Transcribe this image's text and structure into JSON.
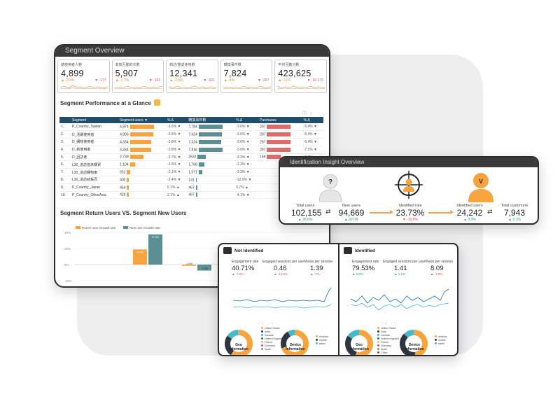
{
  "segment_overview": {
    "title": "Segment Overview",
    "kpis": [
      {
        "label": "總使用者人數",
        "value": "4,899",
        "delta": "▼ -177",
        "pct": "▲ -3.5%"
      },
      {
        "label": "有效互動的次數",
        "value": "5,907",
        "delta": "▼ -101",
        "pct": "▲ -1.7%"
      },
      {
        "label": "新訪/重返使用數",
        "value": "12,341",
        "delta": "▼ -321",
        "pct": "▲ -2.5%"
      },
      {
        "label": "轉換事件數",
        "value": "7,824",
        "delta": "▼ -307",
        "pct": "▲ -4%"
      },
      {
        "label": "平均互動分數",
        "value": "423,625",
        "delta": "▼ -52,175",
        "pct": "▲ -11%"
      }
    ],
    "performance": {
      "title": "Segment Performance at a Glance",
      "columns": [
        "Segment",
        "Segment users ▼",
        "% Δ",
        "轉換事件數",
        "% Δ",
        "Purchases",
        "% Δ"
      ],
      "rows": [
        {
          "no": "1.",
          "segment": "P_Country_Taiwan",
          "users": "4,874",
          "users_pct": "-3.5% ▼",
          "conv": "7,784",
          "conv_pct": "-3.6% ▼",
          "purch": "297",
          "purch_pct": "-5.4% ▼",
          "u": 100,
          "c": 100,
          "p": 100
        },
        {
          "no": "2.",
          "segment": "D_活躍使用者",
          "users": "4,806",
          "users_pct": "-3.5% ▼",
          "conv": "7,624",
          "conv_pct": "-3.6% ▼",
          "purch": "297",
          "purch_pct": "-5.4% ▼",
          "u": 98,
          "c": 98,
          "p": 100
        },
        {
          "no": "3.",
          "segment": "D_購物使用者",
          "users": "4,334",
          "users_pct": "-3.8% ▼",
          "conv": "7,324",
          "conv_pct": "-3.6% ▼",
          "purch": "297",
          "purch_pct": "-5.4% ▼",
          "u": 89,
          "c": 94,
          "p": 100
        },
        {
          "no": "4.",
          "segment": "D_新使用者",
          "users": "4,334",
          "users_pct": "-3.8% ▼",
          "conv": "7,816",
          "conv_pct": "-3.6% ▼",
          "purch": "297",
          "purch_pct": "-7.1% ▼",
          "u": 89,
          "c": 100,
          "p": 100
        },
        {
          "no": "5.",
          "segment": "D_回訪者",
          "users": "2,739",
          "users_pct": "-2.7% ▼",
          "conv": "2532",
          "conv_pct": "-3.3% ▼",
          "purch": "169",
          "purch_pct": "-6.6% ▼",
          "u": 56,
          "c": 33,
          "p": 57
        },
        {
          "no": "6.",
          "segment": "L30_造訪但未購買",
          "users": "1,104",
          "users_pct": "-3.5% ▼",
          "conv": "1,768",
          "conv_pct": "-3.3% ▼",
          "purch": "",
          "purch_pct": "",
          "u": 23,
          "c": 23,
          "p": 0
        },
        {
          "no": "7.",
          "segment": "L30_造訪購物車",
          "users": "651",
          "users_pct": "-2.1% ▼",
          "conv": "1,071",
          "conv_pct": "-3.3% ▼",
          "purch": "",
          "purch_pct": "",
          "u": 13,
          "c": 14,
          "p": 0
        },
        {
          "no": "8.",
          "segment": "L30_造訪結帳頁",
          "users": "400",
          "users_pct": "-2.4% ▼",
          "conv": "131",
          "conv_pct": "-12.9% ▼",
          "purch": "",
          "purch_pct": "",
          "u": 8,
          "c": 2,
          "p": 0
        },
        {
          "no": "9.",
          "segment": "P_Country_Japan",
          "users": "454",
          "users_pct": "5.1% ▲",
          "conv": "467",
          "conv_pct": "5.7% ▲",
          "purch": "",
          "purch_pct": "",
          "u": 9,
          "c": 6,
          "p": 0
        },
        {
          "no": "10.",
          "segment": "P_Country_OtherAsia",
          "users": "429",
          "users_pct": "2.1% ▲",
          "conv": "467",
          "conv_pct": "-4.1% ▼",
          "purch": "",
          "purch_pct": "",
          "u": 9,
          "c": 6,
          "p": 0
        }
      ]
    },
    "return_vs_new": {
      "title": "Segment Return Users VS. Segment New Users",
      "legend": [
        "Return user Growth rate",
        "New user Growth rate"
      ]
    }
  },
  "chart_data": {
    "type": "bar",
    "title": "Segment Return Users VS. Segment New Users",
    "series": [
      {
        "name": "Return user Growth rate",
        "values": [
          18.9,
          -1.5
        ],
        "color": "#f7a43f"
      },
      {
        "name": "New user Growth rate",
        "values": [
          37.5,
          -7.4
        ],
        "color": "#5b8f93"
      }
    ],
    "data_labels": [
      [
        "18.9%",
        "-1.5%"
      ],
      [
        "37.5%",
        "-7.4%"
      ]
    ],
    "y_ticks": [
      "40%",
      "20%",
      "0%",
      "-20%"
    ],
    "ylim": [
      -20,
      40
    ]
  },
  "identification": {
    "title": "Identification Insight Overview",
    "total_users": {
      "label": "Total users",
      "value": "102,155",
      "delta": "▲ 28.6%"
    },
    "new_users": {
      "label": "New users",
      "value": "94,669",
      "delta": "▲ 32.0%"
    },
    "identified_rate": {
      "label": "Identified rate",
      "value": "23.73%",
      "delta": "▼ -19.8%"
    },
    "identified_users": {
      "label": "Identified users",
      "value": "24,242",
      "delta": "▲ 3.0%"
    },
    "total_customers": {
      "label": "Total customers",
      "value": "7,943",
      "delta": "▲ 0.1%"
    },
    "icon_unknown": "?",
    "icon_identified": "V"
  },
  "not_identified": {
    "title": "Not Identified",
    "engagement": {
      "label": "Engagement rate",
      "value": "40.71%",
      "delta": "▲ -7.6%"
    },
    "sessions": {
      "label": "Engaged sessions per user",
      "value": "0.46",
      "delta": "▲ -14.6%"
    },
    "views": {
      "label": "Views per session",
      "value": "1.39",
      "delta": "▲ -7%"
    },
    "geo": "Geo Information",
    "device": "Device Information",
    "geo_legend": [
      "United States",
      "India",
      "Canada",
      "United Kingdom",
      "France",
      "Germany",
      "Spain"
    ],
    "device_legend": [
      "desktop",
      "mobile",
      "tablet"
    ]
  },
  "identified": {
    "title": "Identified",
    "engagement": {
      "label": "Engagement rate",
      "value": "79.53%",
      "delta": "▲ 0.9%"
    },
    "sessions": {
      "label": "Engaged sessions per user",
      "value": "1.41",
      "delta": "▲ 1.1%"
    },
    "views": {
      "label": "Views per session",
      "value": "8.09",
      "delta": "▲ -4.9%"
    },
    "geo": "Geo Information",
    "device": "Device Information",
    "geo_legend": [
      "United States",
      "India",
      "Canada",
      "United Kingdom",
      "France",
      "Germany",
      "Spain",
      "China"
    ],
    "device_legend": [
      "desktop",
      "mobile",
      "tablet"
    ]
  }
}
